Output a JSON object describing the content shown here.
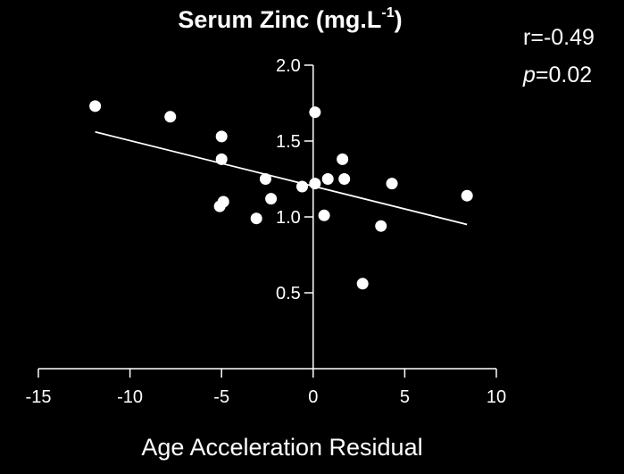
{
  "chart_data": {
    "type": "scatter",
    "title": "Serum Zinc (mg.L",
    "title_superscript": "-1",
    "title_suffix": ")",
    "xlabel": "Age Acceleration Residual",
    "ylabel": "",
    "xlim": [
      -15,
      10
    ],
    "ylim": [
      0,
      2.0
    ],
    "x_ticks": [
      -15,
      -10,
      -5,
      0,
      5,
      10
    ],
    "x_tick_labels": [
      "-15",
      "-10",
      "-5",
      "0",
      "5",
      "10"
    ],
    "y_ticks": [
      0.5,
      1.0,
      1.5,
      2.0
    ],
    "y_tick_labels": [
      "0.5",
      "1.0",
      "1.5",
      "2.0"
    ],
    "grid": false,
    "legend": "none",
    "stats": {
      "r_prefix": "r=",
      "r_value": "-0.49",
      "p_symbol": "p",
      "p_value": "=0.02"
    },
    "series": [
      {
        "x": [
          -11.9,
          -7.8,
          -5.0,
          -5.0,
          -4.9,
          -5.1,
          -3.1,
          -2.6,
          -2.3,
          -0.6,
          0.1,
          0.1,
          0.6,
          0.8,
          1.6,
          1.7,
          2.7,
          3.7,
          4.3,
          8.4
        ],
        "y": [
          1.73,
          1.66,
          1.53,
          1.38,
          1.1,
          1.07,
          0.99,
          1.25,
          1.12,
          1.2,
          1.69,
          1.22,
          1.01,
          1.25,
          1.38,
          1.25,
          0.56,
          0.94,
          1.22,
          1.14
        ]
      }
    ],
    "regression_line": {
      "x": [
        -11.9,
        8.4
      ],
      "y": [
        1.56,
        0.95
      ]
    },
    "colors": {
      "background": "#000000",
      "foreground": "#ffffff",
      "points": "#ffffff",
      "line": "#ffffff"
    }
  }
}
